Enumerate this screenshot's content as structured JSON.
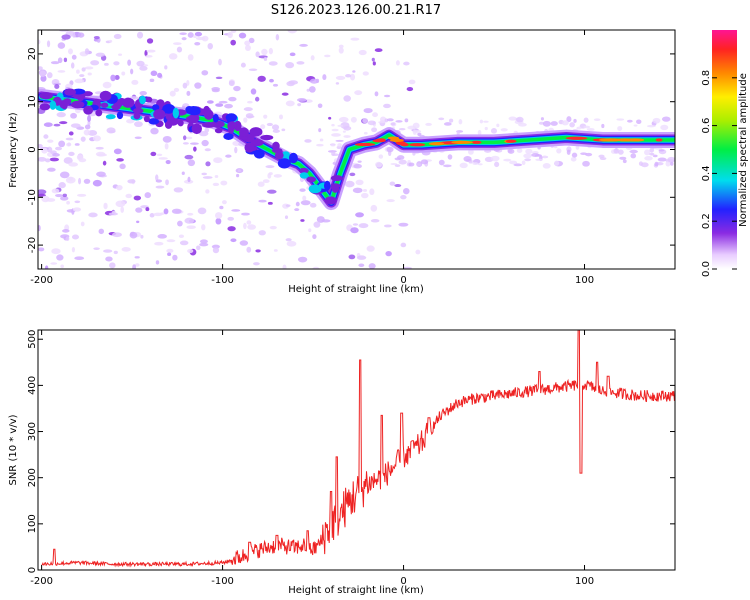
{
  "title": "S126.2023.126.00.21.R17",
  "chart_data": [
    {
      "type": "heatmap",
      "xlabel": "Height of straight line (km)",
      "ylabel": "Frequency (Hz)",
      "xlim": [
        -202,
        150
      ],
      "ylim": [
        -25,
        25
      ],
      "xticks": [
        -200,
        -100,
        0,
        100
      ],
      "yticks": [
        -20,
        -10,
        0,
        10,
        20
      ],
      "colorbar": {
        "label": "Normalized spectral amplitude",
        "range": [
          0,
          1
        ],
        "ticks": [
          0.0,
          0.2,
          0.4,
          0.6,
          0.8
        ]
      },
      "ridge": {
        "x": [
          -200,
          -180,
          -160,
          -140,
          -120,
          -105,
          -95,
          -85,
          -75,
          -65,
          -58,
          -52,
          -46,
          -40,
          -35,
          -30,
          -22,
          -15,
          -8,
          -4,
          0,
          10,
          30,
          50,
          70,
          90,
          110,
          130,
          150
        ],
        "frequency": [
          11,
          10,
          9,
          8,
          7,
          6,
          4.5,
          2,
          0,
          -2,
          -3,
          -5,
          -8,
          -11,
          -5,
          0,
          1,
          1.5,
          3,
          2,
          1,
          1,
          1.5,
          1.5,
          2,
          2.5,
          2,
          2,
          2
        ]
      }
    },
    {
      "type": "line",
      "xlabel": "Height of straight line (km)",
      "ylabel": "SNR (10 * v/v)",
      "xlim": [
        -202,
        150
      ],
      "ylim": [
        0,
        520
      ],
      "xticks": [
        -200,
        -100,
        0,
        100
      ],
      "yticks": [
        0,
        100,
        200,
        300,
        400,
        500
      ],
      "series": [
        {
          "name": "SNR",
          "color": "#ee2222",
          "x": [
            -200,
            -180,
            -160,
            -140,
            -120,
            -100,
            -90,
            -80,
            -70,
            -60,
            -55,
            -50,
            -45,
            -40,
            -35,
            -30,
            -25,
            -20,
            -15,
            -10,
            -5,
            0,
            5,
            10,
            20,
            30,
            40,
            50,
            60,
            70,
            80,
            90,
            100,
            110,
            120,
            130,
            140,
            150
          ],
          "y": [
            12,
            15,
            12,
            12,
            12,
            15,
            25,
            40,
            50,
            45,
            50,
            40,
            60,
            90,
            110,
            140,
            160,
            180,
            190,
            200,
            220,
            240,
            250,
            270,
            330,
            360,
            370,
            375,
            380,
            385,
            390,
            395,
            400,
            385,
            380,
            375,
            375,
            375
          ],
          "spikes": [
            [
              -193,
              45
            ],
            [
              -85,
              60
            ],
            [
              -70,
              75
            ],
            [
              -53,
              85
            ],
            [
              -40,
              170
            ],
            [
              -37,
              245
            ],
            [
              -24,
              455
            ],
            [
              -12,
              335
            ],
            [
              -1,
              340
            ],
            [
              5,
              280
            ],
            [
              14,
              330
            ],
            [
              75,
              430
            ],
            [
              97,
              520
            ],
            [
              98,
              210
            ],
            [
              107,
              450
            ],
            [
              113,
              420
            ]
          ]
        }
      ]
    }
  ],
  "colors": {
    "snr_line": "#ee2222",
    "frame": "#000000"
  }
}
